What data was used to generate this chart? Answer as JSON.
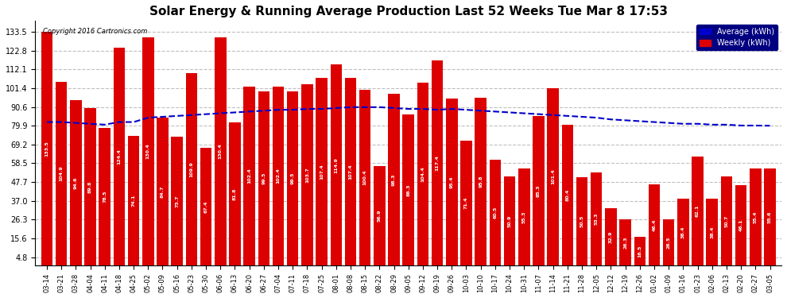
{
  "title": "Solar Energy & Running Average Production Last 52 Weeks Tue Mar 8 17:53",
  "copyright": "Copyright 2016 Cartronics.com",
  "legend_avg": "Average (kWh)",
  "legend_weekly": "Weekly (kWh)",
  "yticks": [
    4.8,
    15.6,
    26.3,
    37.0,
    47.7,
    58.5,
    69.2,
    79.9,
    90.6,
    101.4,
    112.1,
    122.8,
    133.5
  ],
  "bar_color": "#dd0000",
  "avg_line_color": "#0000cc",
  "background_color": "#ffffff",
  "plot_bg_color": "#ffffff",
  "dates": [
    "03-14",
    "03-21",
    "03-28",
    "04-04",
    "04-11",
    "04-18",
    "04-25",
    "05-02",
    "05-09",
    "05-16",
    "05-23",
    "05-30",
    "06-06",
    "06-13",
    "06-20",
    "06-27",
    "07-04",
    "07-11",
    "07-18",
    "07-25",
    "08-01",
    "08-08",
    "08-15",
    "08-22",
    "08-29",
    "09-05",
    "09-12",
    "09-19",
    "09-26",
    "10-03",
    "10-10",
    "10-17",
    "10-24",
    "10-31",
    "11-07",
    "11-14",
    "11-21",
    "11-28",
    "12-05",
    "12-12",
    "12-19",
    "12-26",
    "01-02",
    "01-09",
    "01-16",
    "01-23",
    "02-06",
    "02-13",
    "02-20",
    "02-27",
    "03-05"
  ],
  "weekly_values": [
    133.5,
    104.9,
    94.6,
    89.8,
    78.5,
    124.4,
    74.1,
    130.4,
    84.7,
    73.7,
    109.9,
    67.4,
    130.4,
    81.8,
    102.4,
    99.5,
    102.4,
    99.5,
    103.7,
    107.4,
    114.9,
    107.4,
    100.4,
    56.9,
    98.3,
    86.3,
    104.4,
    117.4,
    95.4,
    71.4,
    95.8,
    60.5,
    50.9,
    55.3,
    85.3,
    101.4,
    80.4,
    50.5,
    53.3,
    32.9,
    26.3,
    16.5,
    46.4,
    26.5,
    38.4,
    62.1,
    38.4,
    50.7,
    46.1,
    55.4,
    55.6
  ],
  "avg_values": [
    82.0,
    82.0,
    81.5,
    81.0,
    80.5,
    82.0,
    82.0,
    84.5,
    85.0,
    85.5,
    86.0,
    86.5,
    87.0,
    87.5,
    88.0,
    88.5,
    89.0,
    89.0,
    89.5,
    89.5,
    90.0,
    90.5,
    90.5,
    90.5,
    90.0,
    89.5,
    89.5,
    89.0,
    89.5,
    89.0,
    88.5,
    88.0,
    87.5,
    87.0,
    86.5,
    86.0,
    85.5,
    85.0,
    84.5,
    83.5,
    83.0,
    82.5,
    82.0,
    81.5,
    81.0,
    81.0,
    80.5,
    80.5,
    80.0,
    80.0,
    79.9
  ]
}
